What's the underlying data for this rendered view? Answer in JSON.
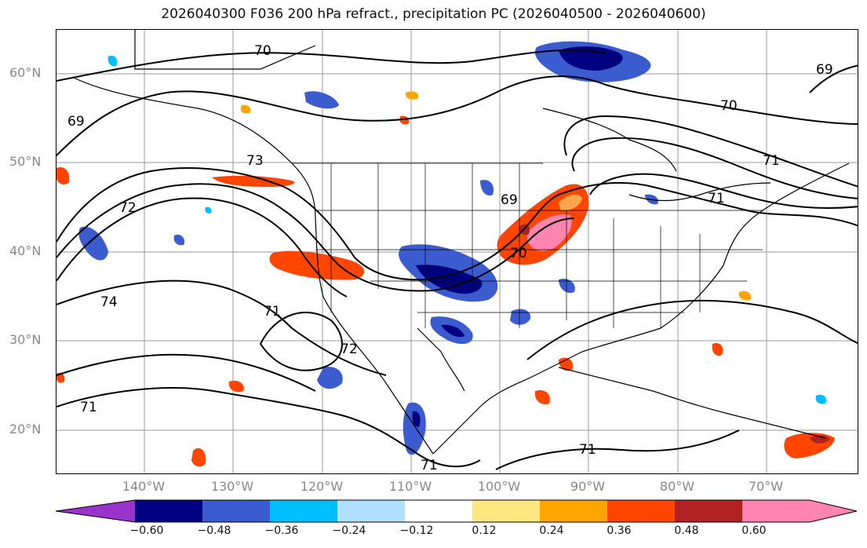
{
  "title": "2026040300 F036 200 hPa refract., precipitation PC (2026040500 - 2026040600)",
  "lat_labels": [
    "60°N",
    "50°N",
    "40°N",
    "30°N",
    "20°N"
  ],
  "lon_labels": [
    "140°W",
    "130°W",
    "120°W",
    "110°W",
    "100°W",
    "90°W",
    "80°W",
    "70°W"
  ],
  "contour_labels": [
    "70",
    "69",
    "73",
    "72",
    "74",
    "71",
    "72",
    "71",
    "70",
    "69",
    "70",
    "69",
    "71",
    "71",
    "71",
    "71"
  ],
  "colorbar": {
    "labels": [
      "−0.60",
      "−0.48",
      "−0.36",
      "−0.24",
      "−0.12",
      "0.12",
      "0.24",
      "0.36",
      "0.48",
      "0.60"
    ],
    "colors": [
      "#9933cc",
      "#000080",
      "#3a5ccf",
      "#00bfff",
      "#b0e0ff",
      "#ffffff",
      "#ffe680",
      "#ffa500",
      "#ff4500",
      "#b22222",
      "#ff85b0"
    ]
  },
  "colors": {
    "contour": "#000000",
    "grid": "#999999",
    "coast": "#000000"
  }
}
